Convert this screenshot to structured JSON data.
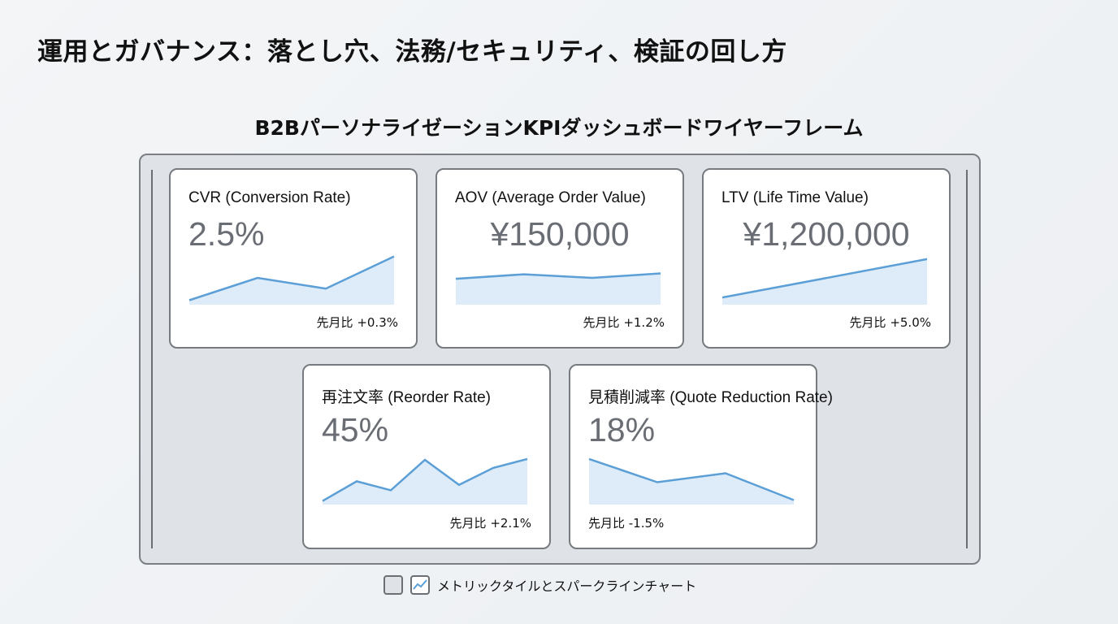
{
  "title": "運用とガバナンス：落とし穴、法務/セキュリティ、検証の回し方",
  "subtitle": "B2BパーソナライゼーションKPIダッシュボードワイヤーフレーム",
  "colors": {
    "line": "#5b9fd6",
    "fill": "#deecf9",
    "frame": "#dfe3e7"
  },
  "cards": [
    {
      "title": "CVR (Conversion Rate)",
      "value": "2.5%",
      "delta": "先月比 +0.3%",
      "spark": [
        5,
        30,
        18,
        54
      ]
    },
    {
      "title": "AOV (Average Order Value)",
      "value": "¥150,000",
      "delta": "先月比 +1.2%",
      "spark": [
        29,
        34,
        30,
        35
      ]
    },
    {
      "title": "LTV (Life Time Value)",
      "value": "¥1,200,000",
      "delta": "先月比 +5.0%",
      "spark": [
        8,
        51
      ]
    },
    {
      "title": "再注文率 (Reorder Rate)",
      "value": "45%",
      "delta": "先月比 +2.1%",
      "spark": [
        4,
        26,
        16,
        50,
        22,
        41,
        51
      ]
    },
    {
      "title": "見積削減率 (Quote Reduction Rate)",
      "value": "18%",
      "delta": "先月比 -1.5%",
      "spark": [
        51,
        25,
        35,
        5
      ]
    }
  ],
  "legend": {
    "icons": [
      "tile-swatch-icon",
      "sparkline-icon"
    ],
    "label": "メトリックタイルとスパークラインチャート"
  }
}
